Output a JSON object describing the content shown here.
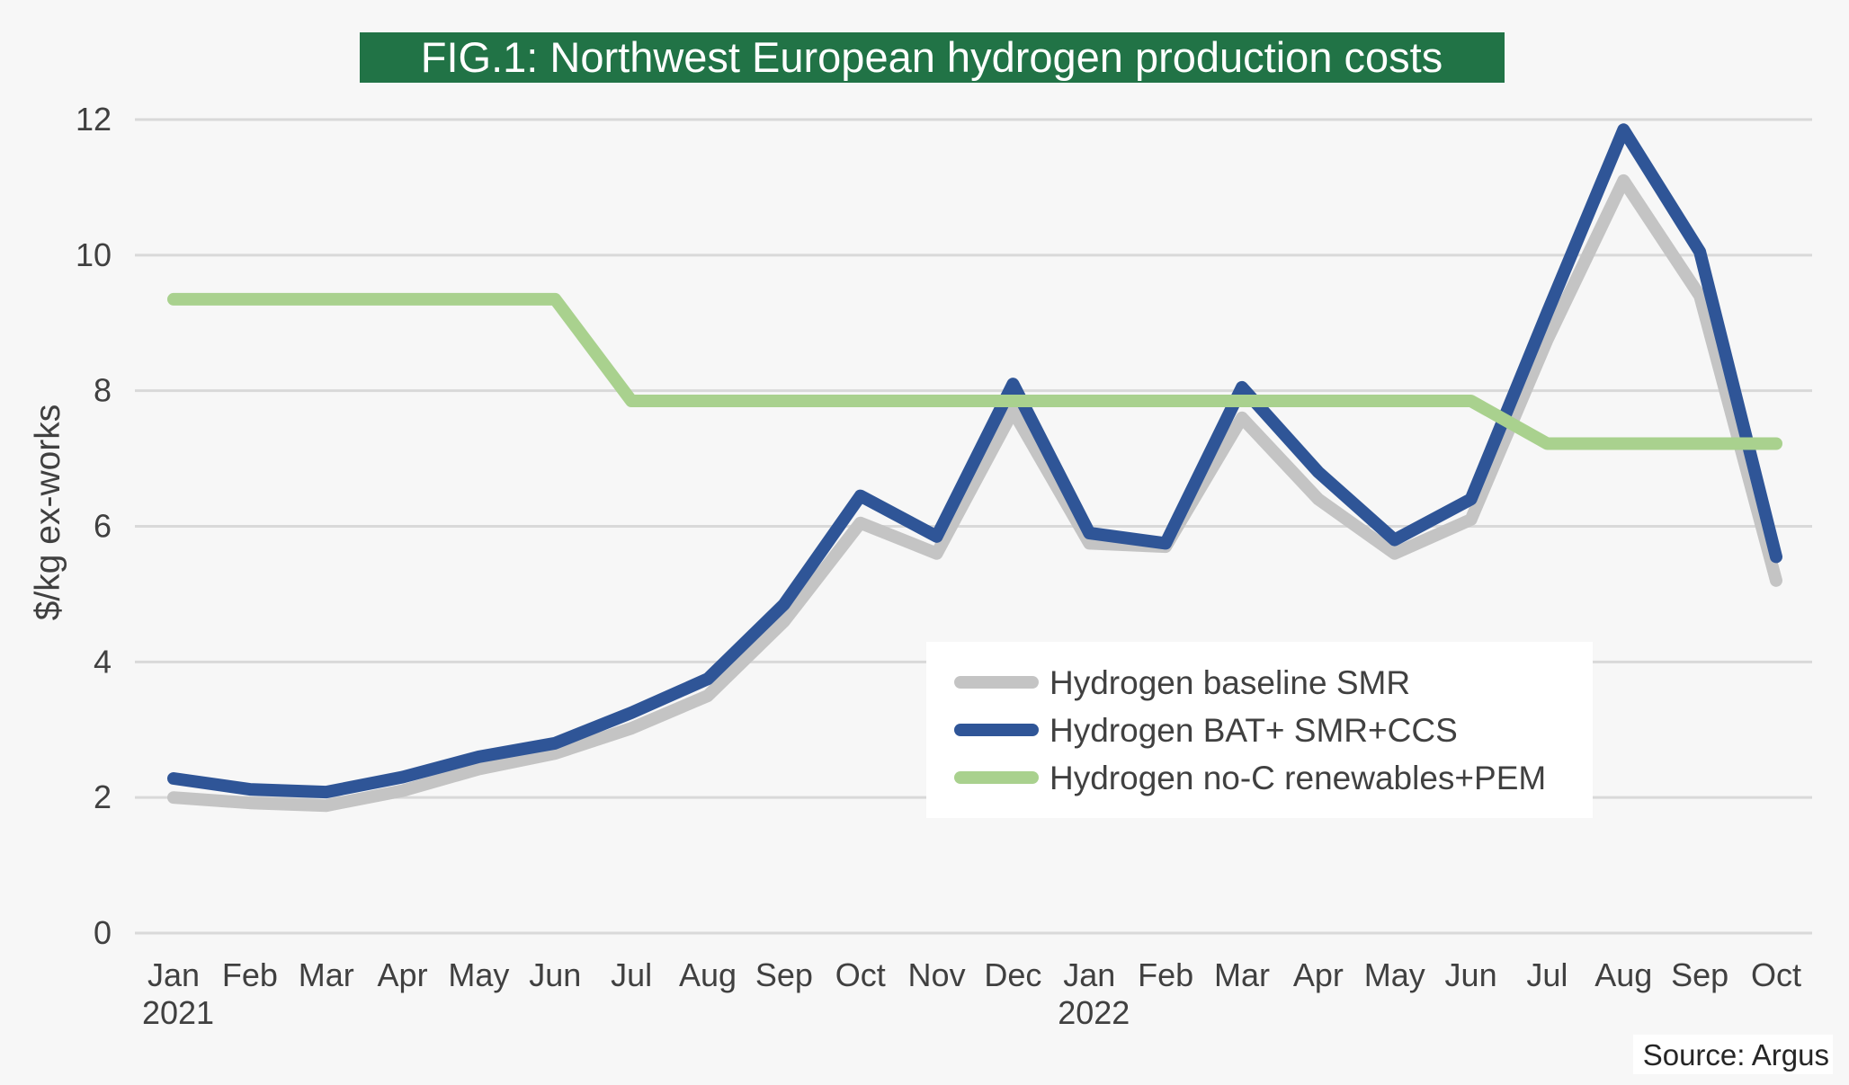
{
  "chart_data": {
    "type": "line",
    "title": "FIG.1: Northwest European hydrogen production costs",
    "ylabel": "$/kg ex-works",
    "xlabel": "",
    "ylim": [
      0,
      12
    ],
    "yticks": [
      0,
      2,
      4,
      6,
      8,
      10,
      12
    ],
    "categories": [
      "Jan",
      "Feb",
      "Mar",
      "Apr",
      "May",
      "Jun",
      "Jul",
      "Aug",
      "Sep",
      "Oct",
      "Nov",
      "Dec",
      "Jan",
      "Feb",
      "Mar",
      "Apr",
      "May",
      "Jun",
      "Jul",
      "Aug",
      "Sep",
      "Oct"
    ],
    "year_labels": [
      {
        "index": 0,
        "label": "2021"
      },
      {
        "index": 12,
        "label": "2022"
      }
    ],
    "grid": true,
    "legend_position": "center-right",
    "series": [
      {
        "name": "Hydrogen baseline SMR",
        "color": "#c4c4c4",
        "values": [
          2.0,
          1.92,
          1.88,
          2.1,
          2.42,
          2.65,
          3.02,
          3.5,
          4.6,
          6.05,
          5.6,
          7.7,
          5.75,
          5.7,
          7.6,
          6.4,
          5.6,
          6.1,
          8.75,
          11.1,
          9.4,
          5.2
        ]
      },
      {
        "name": "Hydrogen BAT+ SMR+CCS",
        "color": "#2f5597",
        "values": [
          2.28,
          2.12,
          2.08,
          2.3,
          2.6,
          2.8,
          3.25,
          3.75,
          4.85,
          6.45,
          5.85,
          8.1,
          5.9,
          5.75,
          8.05,
          6.8,
          5.8,
          6.4,
          9.15,
          11.85,
          10.05,
          5.55
        ]
      },
      {
        "name": "Hydrogen no-C renewables+PEM",
        "color": "#a9d18e",
        "values": [
          9.35,
          9.35,
          9.35,
          9.35,
          9.35,
          9.35,
          7.85,
          7.85,
          7.85,
          7.85,
          7.85,
          7.85,
          7.85,
          7.85,
          7.85,
          7.85,
          7.85,
          7.85,
          7.22,
          7.22,
          7.22,
          7.22
        ]
      }
    ],
    "source": "Source: Argus"
  },
  "colors": {
    "background": "#f7f7f7",
    "title_background": "#217346",
    "gridline": "#d9d9d9"
  }
}
